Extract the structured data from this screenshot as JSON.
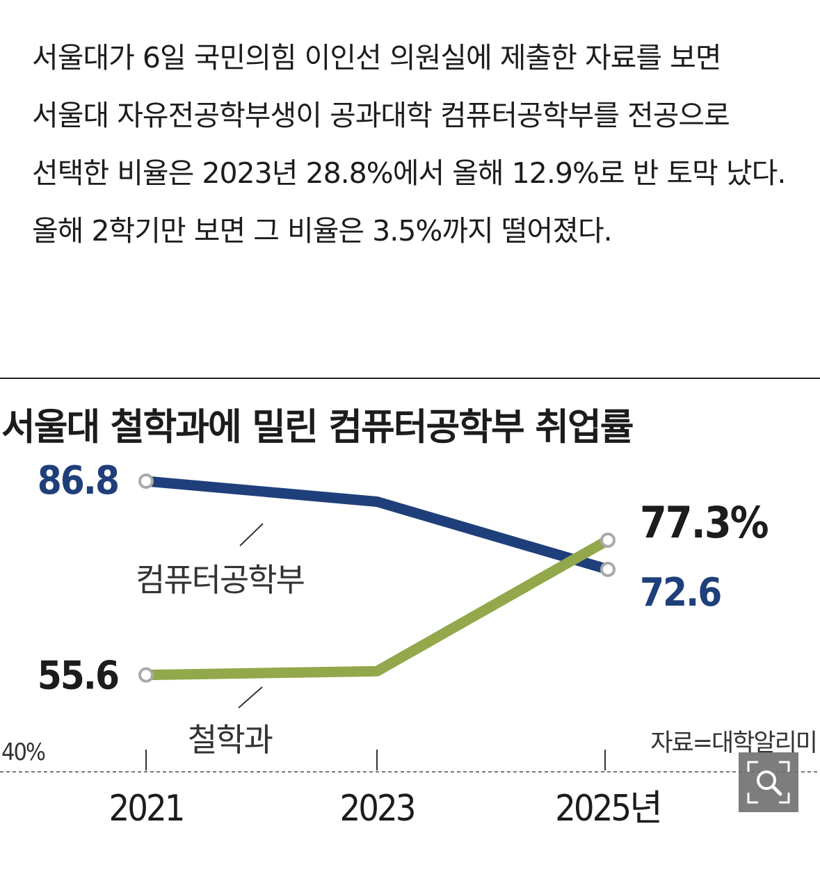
{
  "article": {
    "paragraph": "서울대가 6일 국민의힘 이인선 의원실에 제출한 자료를 보면 서울대 자유전공학부생이 공과대학 컴퓨터공학부를 전공으로 선택한 비율은 2023년 28.8%에서 올해 12.9%로 반 토막 났다. 올해 2학기만 보면 그 비율은 3.5%까지 떨어졌다."
  },
  "colors": {
    "computer_science": "#1f3f7a",
    "philosophy": "#92a84a",
    "text": "#1c1c1c",
    "axis_label": "#333333"
  },
  "icons": {
    "zoom": "magnifier-icon"
  },
  "chart_data": {
    "type": "line",
    "title": "서울대 철학과에 밀린 컴퓨터공학부 취업률",
    "x": [
      "2021",
      "2023",
      "2025년"
    ],
    "y_baseline_label": "40%",
    "ylim": [
      40,
      90
    ],
    "series": [
      {
        "name": "컴퓨터공학부",
        "values": [
          86.8,
          83.5,
          72.6
        ],
        "labels": [
          "86.8",
          "",
          "72.6"
        ]
      },
      {
        "name": "철학과",
        "values": [
          55.6,
          56.2,
          77.3
        ],
        "labels": [
          "55.6",
          "",
          "77.3%"
        ]
      }
    ],
    "source": "자료=대학알리미",
    "grid": false,
    "legend": "inline"
  }
}
